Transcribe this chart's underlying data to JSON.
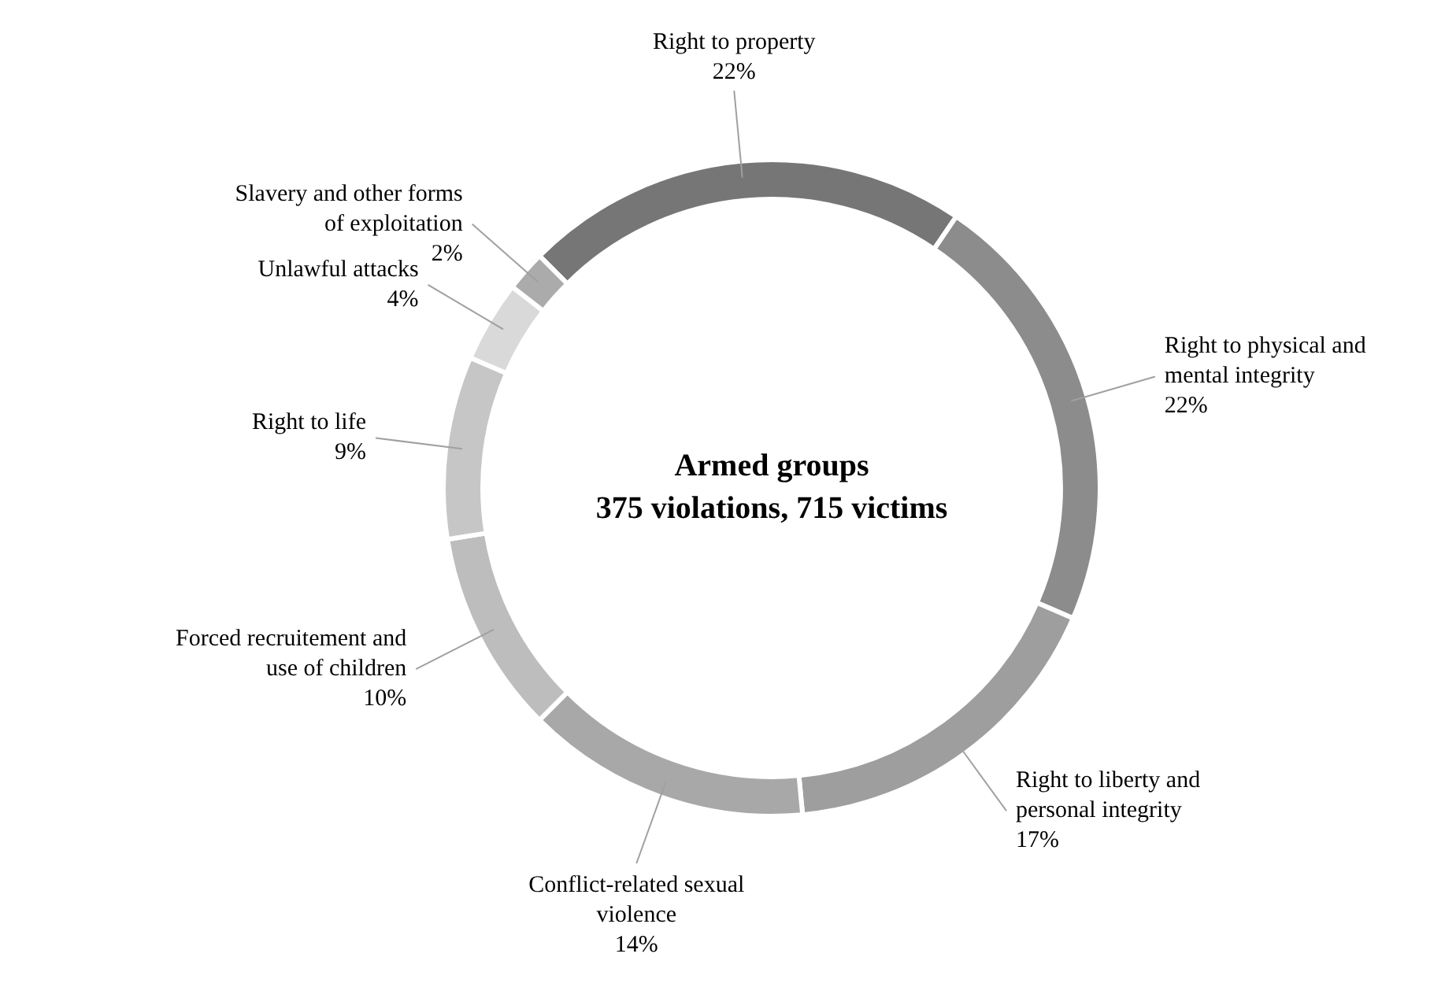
{
  "chart_data": {
    "type": "donut",
    "title": "Armed groups",
    "subtitle": "375 violations, 715 victims",
    "categories": [
      "Right to property",
      "Right to physical and mental integrity",
      "Right to liberty and personal integrity",
      "Conflict-related sexual violence",
      "Forced recruitement and use of children",
      "Right to life",
      "Unlawful attacks",
      "Slavery and other forms of exploitation"
    ],
    "values": [
      22,
      22,
      17,
      14,
      10,
      9,
      4,
      2
    ],
    "colors": [
      "#767676",
      "#8c8c8c",
      "#9e9e9e",
      "#a8a8a8",
      "#bdbdbd",
      "#c6c6c6",
      "#d9d9d9",
      "#ababab"
    ],
    "value_labels": [
      "22%",
      "22%",
      "17%",
      "14%",
      "10%",
      "9%",
      "4%",
      "2%"
    ],
    "legend": false
  }
}
